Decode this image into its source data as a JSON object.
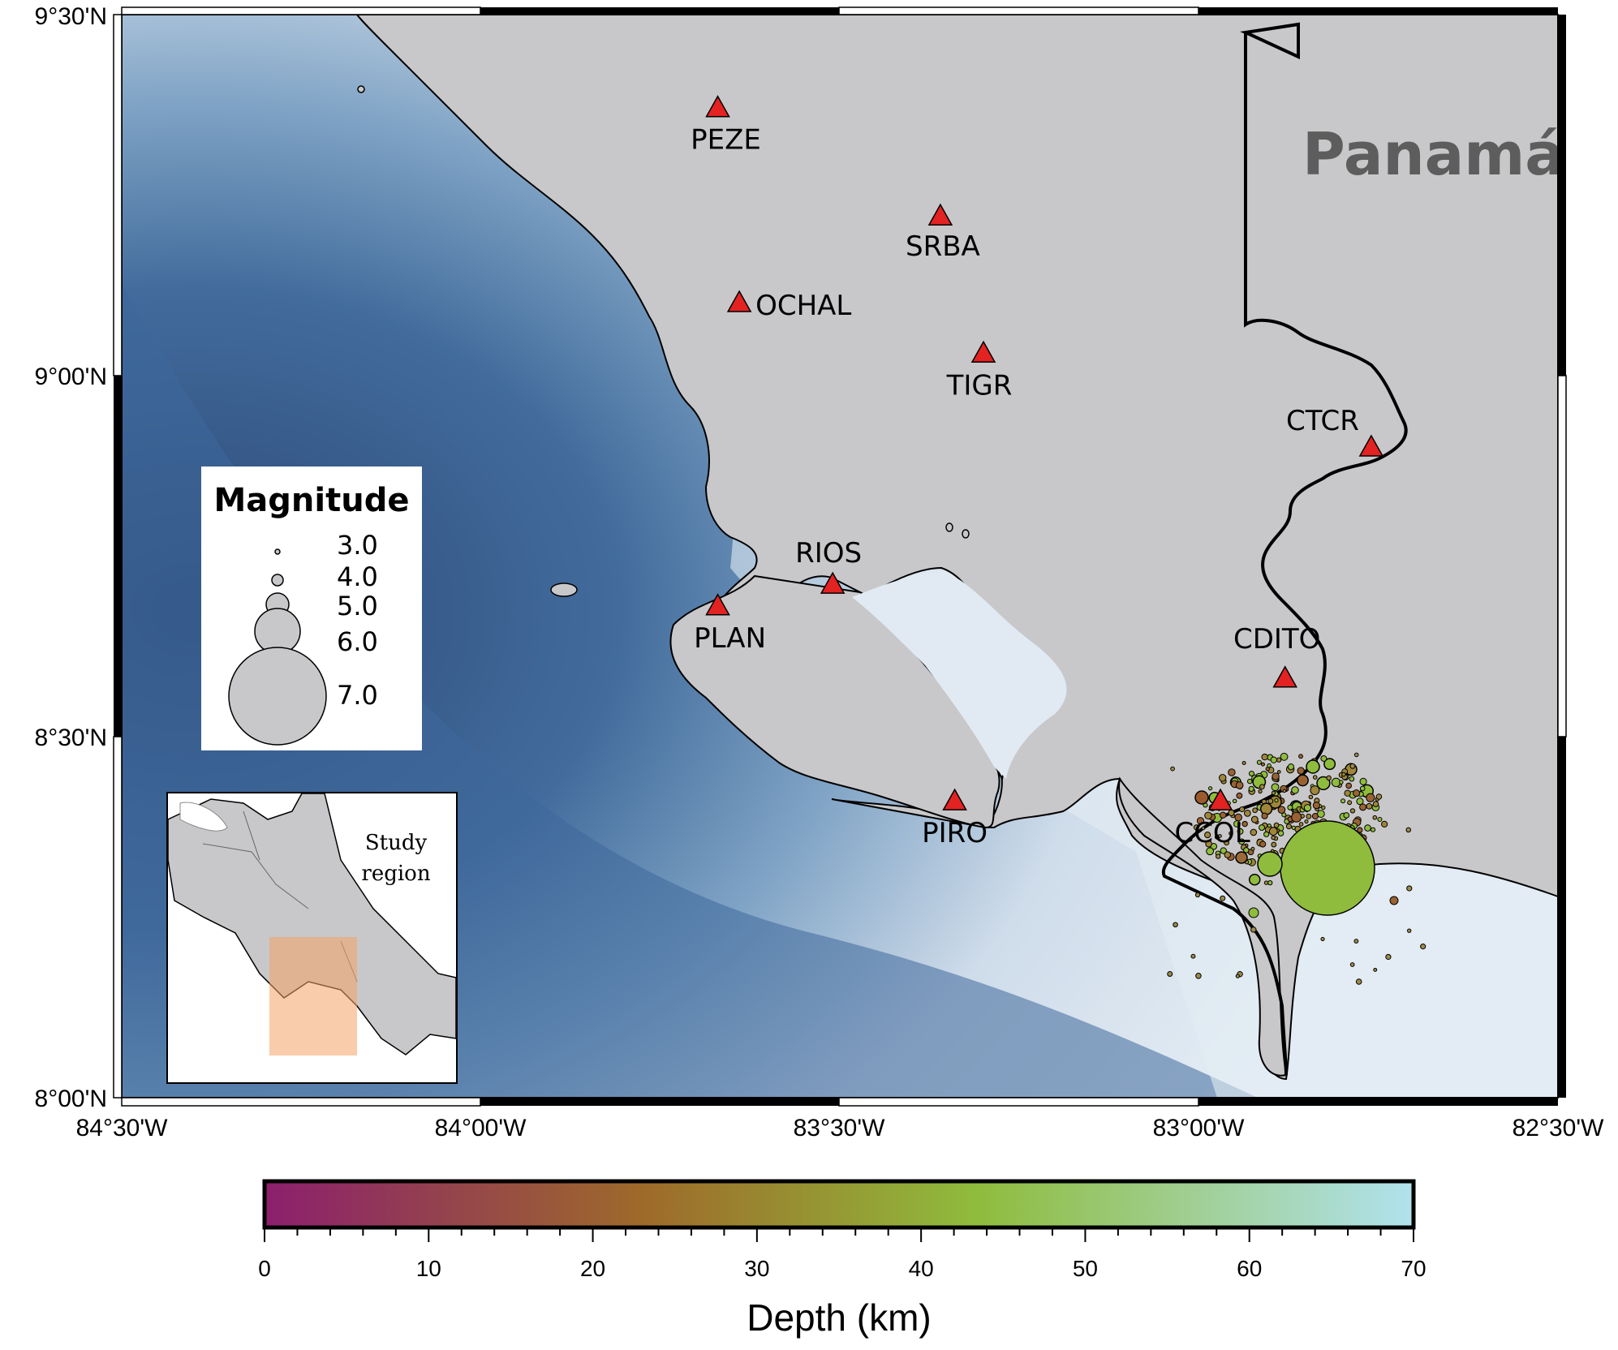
{
  "map": {
    "country_label": "Panamá",
    "lat_labels": [
      "9°30'N",
      "9°00'N",
      "8°30'N",
      "8°00'N"
    ],
    "lon_labels": [
      "84°30'W",
      "84°00'W",
      "83°30'W",
      "83°00'W",
      "82°30'W"
    ]
  },
  "stations": [
    {
      "name": "PEZE",
      "lon": -83.67,
      "lat": 9.37
    },
    {
      "name": "SRBA",
      "lon": -83.36,
      "lat": 9.22
    },
    {
      "name": "OCHAL",
      "lon": -83.64,
      "lat": 9.1
    },
    {
      "name": "TIGR",
      "lon": -83.3,
      "lat": 9.03
    },
    {
      "name": "CTCR",
      "lon": -82.76,
      "lat": 8.9
    },
    {
      "name": "RIOS",
      "lon": -83.51,
      "lat": 8.71
    },
    {
      "name": "PLAN",
      "lon": -83.67,
      "lat": 8.68
    },
    {
      "name": "CDITO",
      "lon": -82.88,
      "lat": 8.58
    },
    {
      "name": "CCOL",
      "lon": -82.97,
      "lat": 8.41
    },
    {
      "name": "PIRO",
      "lon": -83.34,
      "lat": 8.41
    }
  ],
  "magnitude_legend": {
    "title": "Magnitude",
    "entries": [
      "3.0",
      "4.0",
      "5.0",
      "6.0",
      "7.0"
    ]
  },
  "inset": {
    "label_line1": "Study",
    "label_line2": "region"
  },
  "colorbar": {
    "title": "Depth (km)",
    "ticks": [
      "0",
      "10",
      "20",
      "30",
      "40",
      "50",
      "60",
      "70"
    ],
    "colors": [
      "#8c1f6e",
      "#9e6a2a",
      "#8fbc3c",
      "#a8dde8"
    ]
  },
  "colors": {
    "station": "#e32222",
    "land": "#c8c8ca",
    "ocean_deep": "#3f6a9a",
    "ocean_shallow": "#e2ebf3"
  }
}
